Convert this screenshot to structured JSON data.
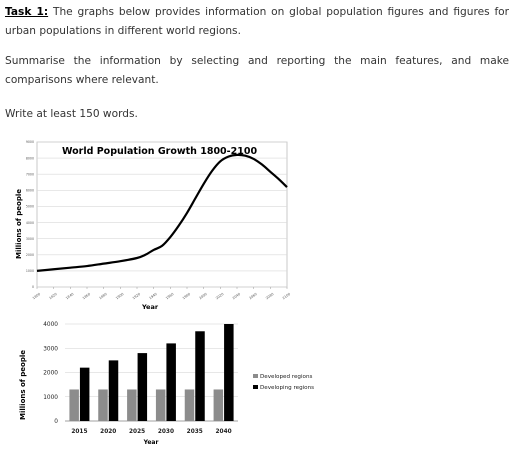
{
  "task": {
    "label": "Task 1:",
    "line1": "The graphs below provides information on global population figures and figures for",
    "line2": "urban populations in different world regions.",
    "summarise_line1": "Summarise the information by selecting and reporting the main features, and make",
    "summarise_line2": "comparisons where relevant.",
    "min_words": "Write at least 150 words."
  },
  "chart_data": [
    {
      "type": "line",
      "title": "World Population Growth 1800-2100",
      "xlabel": "Year",
      "ylabel": "Millions of people",
      "ylim": [
        0,
        9000
      ],
      "yticks": [
        0,
        1000,
        2000,
        3000,
        4000,
        5000,
        6000,
        7000,
        8000,
        9000
      ],
      "ytick_labels": [
        "0",
        "1000",
        "2000",
        "3000",
        "4000",
        "5000",
        "6000",
        "7000",
        "8000",
        "9000"
      ],
      "xticks": [
        1800,
        1820,
        1840,
        1860,
        1880,
        1900,
        1920,
        1940,
        1960,
        1980,
        2000,
        2020,
        2040,
        2060,
        2080,
        2100
      ],
      "xtick_labels": [
        "1800",
        "1820",
        "1840",
        "1860",
        "1880",
        "1900",
        "1920",
        "1940",
        "1960",
        "1980",
        "2000",
        "2020",
        "2040",
        "2060",
        "2080",
        "2100"
      ],
      "grid": true,
      "x": [
        1800,
        1820,
        1840,
        1860,
        1880,
        1900,
        1920,
        1930,
        1940,
        1950,
        1960,
        1970,
        1980,
        1990,
        2000,
        2010,
        2020,
        2030,
        2040,
        2050,
        2060,
        2070,
        2080,
        2090,
        2100
      ],
      "y": [
        1000,
        1100,
        1200,
        1300,
        1450,
        1600,
        1800,
        2000,
        2300,
        2550,
        3100,
        3800,
        4600,
        5500,
        6400,
        7200,
        7800,
        8100,
        8200,
        8150,
        7950,
        7600,
        7150,
        6700,
        6200
      ],
      "color": "#000000"
    },
    {
      "type": "bar",
      "categories": [
        "2015",
        "2020",
        "2025",
        "2030",
        "2035",
        "2040"
      ],
      "xlabel": "Year",
      "ylabel": "Millions of people",
      "ylim": [
        0,
        4000
      ],
      "yticks": [
        0,
        1000,
        2000,
        3000,
        4000
      ],
      "ytick_labels": [
        "0",
        "1000",
        "2000",
        "3000",
        "4000"
      ],
      "grid": true,
      "legend_position": "right",
      "series": [
        {
          "name": "Developed regions",
          "values": [
            1300,
            1300,
            1300,
            1300,
            1300,
            1300
          ],
          "color": "#8c8c8c"
        },
        {
          "name": "Developing regions",
          "values": [
            2200,
            2500,
            2800,
            3200,
            3700,
            4000
          ],
          "color": "#000000"
        }
      ]
    }
  ]
}
